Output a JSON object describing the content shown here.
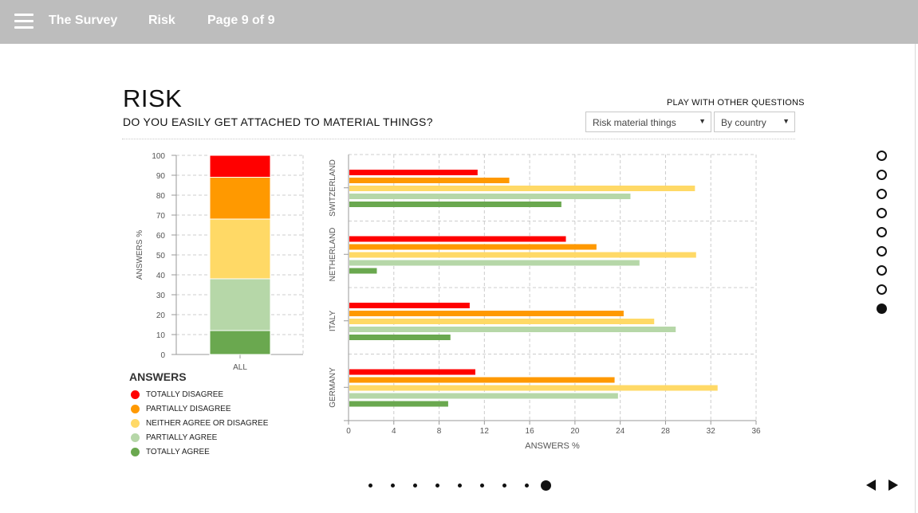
{
  "topbar": {
    "menu_icon": "hamburger-menu-icon",
    "nav": [
      "The Survey",
      "Risk",
      "Page 9 of 9"
    ]
  },
  "header": {
    "title": "RISK",
    "question": "DO YOU EASILY GET ATTACHED TO MATERIAL THINGS?",
    "play_label": "PLAY WITH OTHER QUESTIONS",
    "question_select": "Risk material things",
    "view_select": "By country"
  },
  "colors": {
    "totally_disagree": "#ff0000",
    "partially_disagree": "#ff9900",
    "neither": "#ffd966",
    "partially_agree": "#b6d7a8",
    "totally_agree": "#6aa84f"
  },
  "legend": {
    "title": "ANSWERS",
    "items": [
      "TOTALLY DISAGREE",
      "PARTIALLY DISAGREE",
      "NEITHER AGREE OR DISAGREE",
      "PARTIALLY AGREE",
      "TOTALLY AGREE"
    ]
  },
  "chart_data": [
    {
      "type": "bar",
      "stacked": true,
      "categories": [
        "ALL"
      ],
      "ylabel": "ANSWERS %",
      "ylim": [
        0,
        100
      ],
      "yticks": [
        0,
        10,
        20,
        30,
        40,
        50,
        60,
        70,
        80,
        90,
        100
      ],
      "grid": true,
      "series": [
        {
          "name": "TOTALLY AGREE",
          "values": [
            12
          ]
        },
        {
          "name": "PARTIALLY AGREE",
          "values": [
            26
          ]
        },
        {
          "name": "NEITHER AGREE OR DISAGREE",
          "values": [
            30
          ]
        },
        {
          "name": "PARTIALLY DISAGREE",
          "values": [
            21
          ]
        },
        {
          "name": "TOTALLY DISAGREE",
          "values": [
            11
          ]
        }
      ]
    },
    {
      "type": "bar",
      "orientation": "horizontal",
      "categories": [
        "SWITZERLAND",
        "NETHERLAND",
        "ITALY",
        "GERMANY"
      ],
      "xlabel": "ANSWERS %",
      "xlim": [
        0,
        36
      ],
      "xticks": [
        0,
        4,
        8,
        12,
        16,
        20,
        24,
        28,
        32,
        36
      ],
      "grid": true,
      "series": [
        {
          "name": "TOTALLY DISAGREE",
          "values": [
            11.4,
            19.2,
            10.7,
            11.2
          ]
        },
        {
          "name": "PARTIALLY DISAGREE",
          "values": [
            14.2,
            21.9,
            24.3,
            23.5
          ]
        },
        {
          "name": "NEITHER AGREE OR DISAGREE",
          "values": [
            30.6,
            30.7,
            27.0,
            32.6
          ]
        },
        {
          "name": "PARTIALLY AGREE",
          "values": [
            24.9,
            25.7,
            28.9,
            23.8
          ]
        },
        {
          "name": "TOTALLY AGREE",
          "values": [
            18.8,
            2.5,
            9.0,
            8.8
          ]
        }
      ]
    }
  ],
  "page_dots": {
    "count": 9,
    "active": 8
  },
  "bottom_dots": {
    "count": 9,
    "active": 8
  },
  "nav": {
    "prev_icon": "triangle-left-icon",
    "next_icon": "triangle-right-icon"
  }
}
